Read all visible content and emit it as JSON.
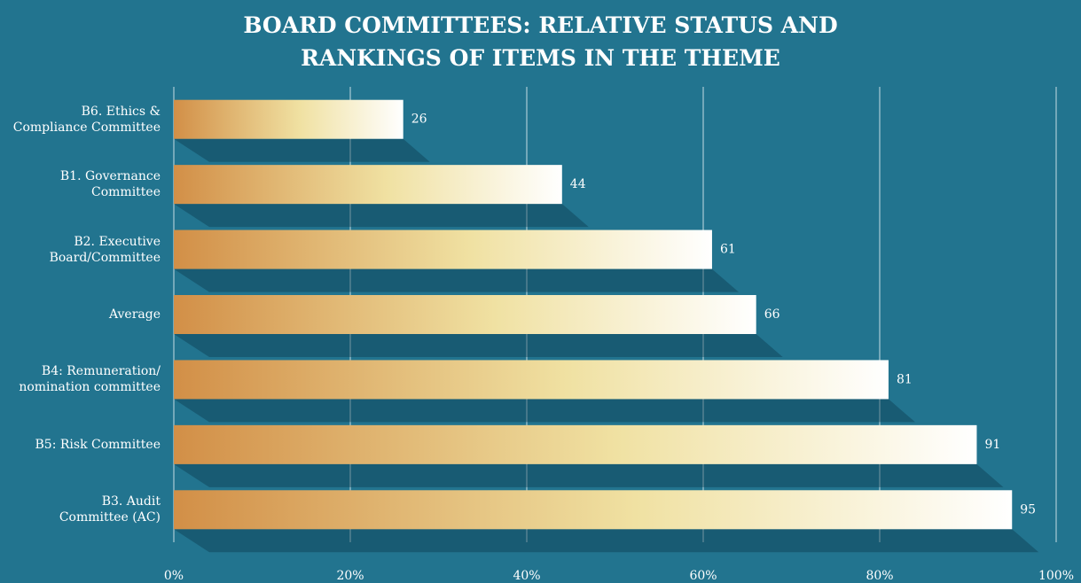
{
  "chart_data": {
    "type": "barh",
    "title": "BOARD COMMITTEES: RELATIVE STATUS AND RANKINGS OF ITEMS IN THE THEME",
    "categories": [
      "B6. Ethics &\nCompliance Committee",
      "B1. Governance\nCommittee",
      "B2. Executive\nBoard/Committee",
      "Average",
      "B4: Remuneration/\nnomination committee",
      "B5: Risk Committee",
      "B3. Audit\nCommittee (AC)"
    ],
    "values": [
      26,
      44,
      61,
      66,
      81,
      91,
      95
    ],
    "color": [
      "#d28f47",
      "#f0e1a2",
      "#ffffff"
    ],
    "xlim": [
      0,
      100
    ],
    "xticks": [
      {
        "value": 0,
        "label": "0%"
      },
      {
        "value": 20,
        "label": "20%"
      },
      {
        "value": 40,
        "label": "40%"
      },
      {
        "value": 60,
        "label": "60%"
      },
      {
        "value": 80,
        "label": "80%"
      },
      {
        "value": 100,
        "label": "100%"
      }
    ],
    "grid": true
  }
}
